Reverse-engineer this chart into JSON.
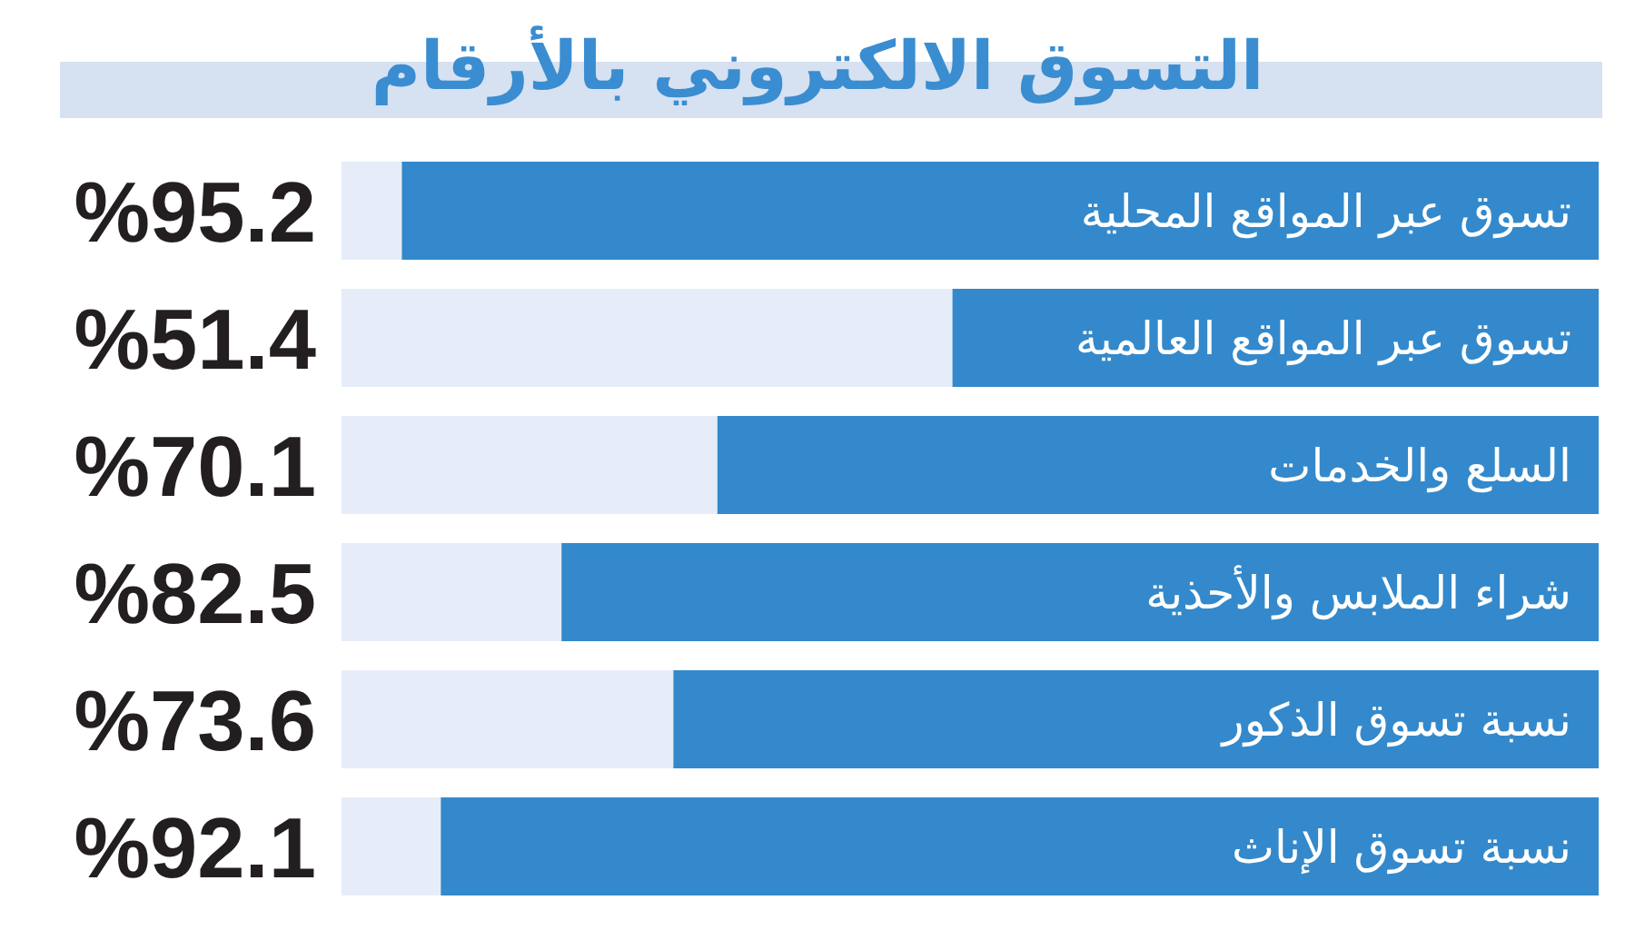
{
  "chart_data": {
    "type": "bar",
    "orientation": "horizontal",
    "title": "التسوق الالكتروني بالأرقام",
    "categories": [
      "تسوق عبر المواقع المحلية",
      "تسوق عبر المواقع العالمية",
      "السلع والخدمات",
      "شراء الملابس والأحذية",
      "نسبة تسوق الذكور",
      "نسبة تسوق الإناث"
    ],
    "values": [
      95.2,
      51.4,
      70.1,
      82.5,
      73.6,
      92.1
    ],
    "color": "#3389cb",
    "value_labels": [
      "%95.2",
      "%51.4",
      "%70.1",
      "%82.5",
      "%73.6",
      "%92.1"
    ],
    "xlim": [
      100,
      0
    ],
    "tick_labels": "y"
  }
}
